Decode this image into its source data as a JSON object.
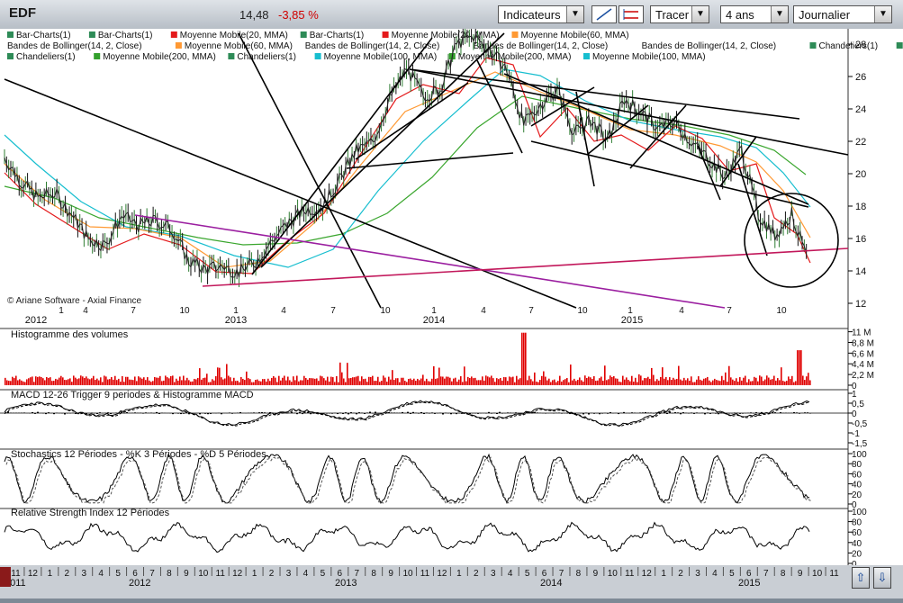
{
  "toolbar": {
    "symbol": "EDF",
    "price": "14,48",
    "change": "-3,85 %",
    "indicators_label": "Indicateurs",
    "draw_label": "Tracer",
    "period_value": "4 ans",
    "interval_value": "Journalier"
  },
  "legend": [
    {
      "text": "Bar-Charts(1)",
      "color": "#2e8b57"
    },
    {
      "text": "Bar-Charts(1)",
      "color": "#2e8b57"
    },
    {
      "text": "Moyenne Mobile(20, MMA)",
      "color": "#e41a1c"
    },
    {
      "text": "Bar-Charts(1)",
      "color": "#2e8b57"
    },
    {
      "text": "Moyenne Mobile(20, MMA)",
      "color": "#e41a1c"
    },
    {
      "text": "Moyenne Mobile(60, MMA)",
      "color": "#ff9933"
    },
    {
      "text": "Bandes de Bollinger(14, 2, Close)",
      "color": ""
    },
    {
      "text": "Moyenne Mobile(60, MMA)",
      "color": "#ff9933"
    },
    {
      "text": "Bandes de Bollinger(14, 2, Close)",
      "color": ""
    },
    {
      "text": "Bandes de Bollinger(14, 2, Close)",
      "color": ""
    },
    {
      "text": "Bandes de Bollinger(14, 2, Close)",
      "color": ""
    },
    {
      "text": "Chandeliers(1)",
      "color": "#2e8b57"
    },
    {
      "text": "Chandeliers(1)",
      "color": "#2e8b57"
    },
    {
      "text": "Chandeliers(1)",
      "color": "#2e8b57"
    },
    {
      "text": "Moyenne Mobile(200, MMA)",
      "color": "#33a02c"
    },
    {
      "text": "Chandeliers(1)",
      "color": "#2e8b57"
    },
    {
      "text": "Moyenne Mobile(100, MMA)",
      "color": "#17becf"
    },
    {
      "text": "Moyenne Mobile(200, MMA)",
      "color": "#33a02c"
    },
    {
      "text": "Moyenne Mobile(100, MMA)",
      "color": "#17becf"
    }
  ],
  "copyright": "© Ariane Software - Axial Finance",
  "panels": {
    "volume_title": "Histogramme des volumes",
    "macd_title": "MACD 12-26   Trigger 9 periodes & Histogramme MACD",
    "stoch_title": "Stochastics 12 Périodes   - %K 3 Périodes   - %D 5 Périodes",
    "rsi_title": "Relative Strength Index 12 Périodes"
  },
  "axes": {
    "price_ticks": [
      "28",
      "26",
      "24",
      "22",
      "20",
      "18",
      "16",
      "14",
      "12"
    ],
    "volume_ticks": [
      "11 M",
      "8,8 M",
      "6,6 M",
      "4,4 M",
      "2,2 M",
      "0"
    ],
    "macd_ticks": [
      "1",
      "0,5",
      "0",
      "-0,5",
      "-1",
      "-1,5"
    ],
    "stoch_ticks": [
      "100",
      "80",
      "60",
      "40",
      "20",
      "0"
    ],
    "rsi_ticks": [
      "100",
      "80",
      "60",
      "40",
      "20",
      "0"
    ],
    "month_ticks": [
      "1",
      "4",
      "7",
      "10",
      "1",
      "4",
      "7",
      "10",
      "1",
      "4",
      "7",
      "10",
      "1",
      "4",
      "7",
      "10"
    ],
    "year_labels": [
      "2012",
      "2013",
      "2014",
      "2015"
    ],
    "timeline_months": [
      "11",
      "12",
      "1",
      "2",
      "3",
      "4",
      "5",
      "6",
      "7",
      "8",
      "9",
      "10",
      "11",
      "12",
      "1",
      "2",
      "3",
      "4",
      "5",
      "6",
      "7",
      "8",
      "9",
      "10",
      "11",
      "12",
      "1",
      "2",
      "3",
      "4",
      "5",
      "6",
      "7",
      "8",
      "9",
      "10",
      "11",
      "12",
      "1",
      "2",
      "3",
      "4",
      "5",
      "6",
      "7",
      "8",
      "9",
      "10",
      "11"
    ],
    "timeline_years": [
      "2011",
      "2012",
      "2013",
      "2014",
      "2015"
    ]
  },
  "chart_data": [
    {
      "type": "line",
      "title": "EDF",
      "series": [
        {
          "name": "Close",
          "x": [
            "2011-12",
            "2012-01",
            "2012-02",
            "2012-03",
            "2012-04",
            "2012-05",
            "2012-06",
            "2012-07",
            "2012-08",
            "2012-09",
            "2012-10",
            "2012-11",
            "2012-12",
            "2013-01",
            "2013-02",
            "2013-03",
            "2013-04",
            "2013-05",
            "2013-06",
            "2013-07",
            "2013-08",
            "2013-09",
            "2013-10",
            "2013-11",
            "2013-12",
            "2014-01",
            "2014-02",
            "2014-03",
            "2014-04",
            "2014-05",
            "2014-06",
            "2014-07",
            "2014-08",
            "2014-09",
            "2014-10",
            "2014-11",
            "2014-12",
            "2015-01",
            "2015-02",
            "2015-03",
            "2015-04",
            "2015-05",
            "2015-06",
            "2015-07",
            "2015-08",
            "2015-09",
            "2015-10",
            "2015-11",
            "2015-12"
          ],
          "y": [
            21.0,
            19.5,
            18.5,
            18.8,
            17.5,
            16.0,
            15.6,
            17.4,
            16.8,
            17.1,
            16.6,
            14.6,
            14.1,
            14.3,
            13.9,
            14.6,
            15.9,
            17.0,
            17.8,
            18.0,
            19.6,
            21.4,
            22.0,
            24.6,
            26.5,
            24.8,
            25.2,
            28.0,
            28.5,
            27.6,
            26.4,
            23.0,
            24.3,
            25.2,
            22.5,
            23.3,
            22.0,
            24.6,
            23.8,
            22.8,
            23.2,
            22.0,
            21.0,
            19.8,
            21.5,
            17.5,
            16.2,
            17.5,
            14.5
          ]
        }
      ],
      "ylim": [
        12,
        29.5
      ],
      "trendlines": "yes"
    },
    {
      "type": "bar",
      "title": "Histogramme des volumes",
      "ylim": [
        0,
        11
      ]
    },
    {
      "type": "line",
      "title": "MACD 12-26   Trigger 9 periodes & Histogramme MACD",
      "ylim": [
        -1.5,
        1
      ]
    },
    {
      "type": "line",
      "title": "Stochastics 12 Périodes   - %K 3 Périodes   - %D 5 Périodes",
      "ylim": [
        0,
        100
      ]
    },
    {
      "type": "line",
      "title": "Relative Strength Index 12 Périodes",
      "ylim": [
        0,
        100
      ]
    }
  ]
}
